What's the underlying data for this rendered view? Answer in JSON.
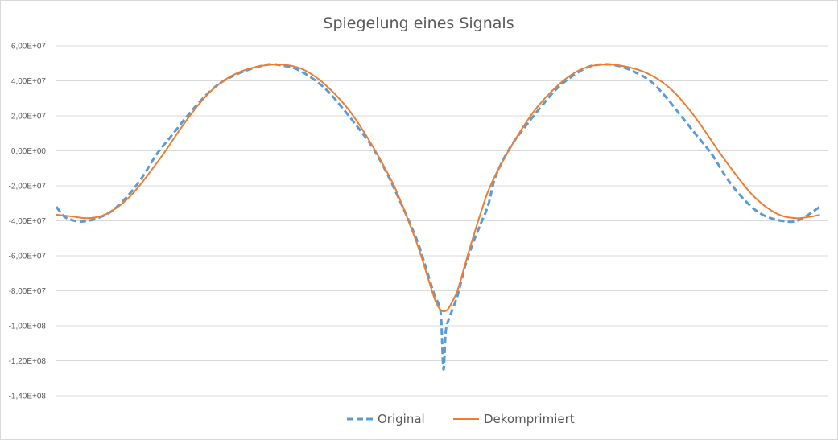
{
  "chart_data": {
    "type": "line",
    "title": "Spiegelung eines Signals",
    "xlabel": "",
    "ylabel": "",
    "ylim": [
      -140000000,
      60000000
    ],
    "y_ticks": [
      60000000,
      40000000,
      20000000,
      0,
      -20000000,
      -40000000,
      -60000000,
      -80000000,
      -100000000,
      -120000000,
      -140000000
    ],
    "y_tick_labels": [
      "6,00E+07",
      "4,00E+07",
      "2,00E+07",
      "0,00E+00",
      "-2,00E+07",
      "-4,00E+07",
      "-6,00E+07",
      "-8,00E+07",
      "-1,00E+08",
      "-1,20E+08",
      "-1,40E+08"
    ],
    "grid": true,
    "legend": "bottom",
    "xlim": [
      0,
      100
    ],
    "series": [
      {
        "name": "Original",
        "color": "#5b9bd5",
        "dash": "dashed",
        "points": [
          [
            0,
            -32000000
          ],
          [
            1,
            -37500000
          ],
          [
            2,
            -39500000
          ],
          [
            3,
            -40500000
          ],
          [
            4,
            -40000000
          ],
          [
            5,
            -39000000
          ],
          [
            7,
            -35000000
          ],
          [
            9,
            -27000000
          ],
          [
            11,
            -16000000
          ],
          [
            13,
            -2000000
          ],
          [
            15,
            9000000
          ],
          [
            17,
            20000000
          ],
          [
            19,
            30000000
          ],
          [
            21,
            38000000
          ],
          [
            23,
            43000000
          ],
          [
            25,
            46500000
          ],
          [
            27,
            49000000
          ],
          [
            28,
            49500000
          ],
          [
            29,
            49000000
          ],
          [
            31,
            47000000
          ],
          [
            33,
            42000000
          ],
          [
            35,
            35000000
          ],
          [
            37,
            25000000
          ],
          [
            39,
            14000000
          ],
          [
            41,
            2000000
          ],
          [
            43,
            -14000000
          ],
          [
            45,
            -33000000
          ],
          [
            46,
            -43000000
          ],
          [
            47,
            -54000000
          ],
          [
            48,
            -68000000
          ],
          [
            49,
            -82000000
          ],
          [
            49.6,
            -88000000
          ],
          [
            49.9,
            -96000000
          ],
          [
            50.2,
            -125000000
          ],
          [
            50.5,
            -103000000
          ],
          [
            51,
            -95000000
          ],
          [
            52,
            -83000000
          ],
          [
            53,
            -66000000
          ],
          [
            54,
            -53000000
          ],
          [
            55,
            -42000000
          ],
          [
            56,
            -31000000
          ],
          [
            57,
            -14000000
          ],
          [
            59,
            3000000
          ],
          [
            61,
            15000000
          ],
          [
            63,
            26000000
          ],
          [
            65,
            36000000
          ],
          [
            67,
            43000000
          ],
          [
            69,
            48000000
          ],
          [
            71,
            49500000
          ],
          [
            73,
            48500000
          ],
          [
            75,
            45000000
          ],
          [
            77,
            40000000
          ],
          [
            79,
            31000000
          ],
          [
            81,
            20000000
          ],
          [
            83,
            9000000
          ],
          [
            85,
            -2000000
          ],
          [
            87,
            -16000000
          ],
          [
            89,
            -27000000
          ],
          [
            91,
            -35000000
          ],
          [
            93,
            -39000000
          ],
          [
            95,
            -40500000
          ],
          [
            96,
            -40000000
          ],
          [
            97,
            -38000000
          ],
          [
            98,
            -35000000
          ],
          [
            99,
            -32000000
          ]
        ]
      },
      {
        "name": "Dekomprimiert",
        "color": "#ed7d31",
        "dash": "solid",
        "points": [
          [
            0,
            -36500000
          ],
          [
            2,
            -37500000
          ],
          [
            4,
            -38500000
          ],
          [
            6,
            -37000000
          ],
          [
            8,
            -32000000
          ],
          [
            10,
            -24000000
          ],
          [
            12,
            -13000000
          ],
          [
            14,
            -1000000
          ],
          [
            16,
            12000000
          ],
          [
            18,
            24000000
          ],
          [
            20,
            34000000
          ],
          [
            22,
            41000000
          ],
          [
            24,
            45500000
          ],
          [
            26,
            48000000
          ],
          [
            28,
            49300000
          ],
          [
            30,
            49000000
          ],
          [
            32,
            46500000
          ],
          [
            34,
            41000000
          ],
          [
            36,
            33000000
          ],
          [
            38,
            23000000
          ],
          [
            40,
            10000000
          ],
          [
            42,
            -5000000
          ],
          [
            44,
            -22000000
          ],
          [
            46,
            -44000000
          ],
          [
            47,
            -56000000
          ],
          [
            48,
            -70000000
          ],
          [
            49,
            -84000000
          ],
          [
            49.5,
            -89000000
          ],
          [
            50,
            -91500000
          ],
          [
            50.5,
            -91500000
          ],
          [
            51,
            -89000000
          ],
          [
            52,
            -80000000
          ],
          [
            53,
            -65000000
          ],
          [
            54,
            -50000000
          ],
          [
            56,
            -23000000
          ],
          [
            58,
            -5000000
          ],
          [
            60,
            10000000
          ],
          [
            62,
            23000000
          ],
          [
            64,
            33000000
          ],
          [
            66,
            41000000
          ],
          [
            68,
            46500000
          ],
          [
            70,
            49000000
          ],
          [
            72,
            49300000
          ],
          [
            74,
            48000000
          ],
          [
            76,
            45500000
          ],
          [
            78,
            41000000
          ],
          [
            80,
            34000000
          ],
          [
            82,
            24000000
          ],
          [
            84,
            12000000
          ],
          [
            86,
            -1000000
          ],
          [
            88,
            -13000000
          ],
          [
            90,
            -24000000
          ],
          [
            92,
            -32000000
          ],
          [
            94,
            -37000000
          ],
          [
            96,
            -38500000
          ],
          [
            98,
            -37500000
          ],
          [
            99,
            -36500000
          ]
        ]
      }
    ]
  }
}
